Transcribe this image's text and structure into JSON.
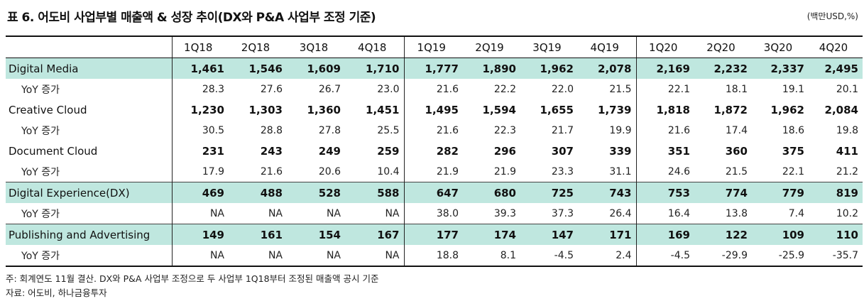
{
  "title": "표 6. 어도비 사업부별 매출액 & 성장 추이(DX와 P&A 사업부 조정 기준)",
  "unit": "(백만USD,%)",
  "columns": [
    "1Q18",
    "2Q18",
    "3Q18",
    "4Q18",
    "1Q19",
    "2Q19",
    "3Q19",
    "4Q19",
    "1Q20",
    "2Q20",
    "3Q20",
    "4Q20"
  ],
  "rows": [
    {
      "label": "Digital Media",
      "values": [
        "1,461",
        "1,546",
        "1,609",
        "1,710",
        "1,777",
        "1,890",
        "1,962",
        "2,078",
        "2,169",
        "2,232",
        "2,337",
        "2,495"
      ]
    },
    {
      "label": "YoY 증가",
      "values": [
        "28.3",
        "27.6",
        "26.7",
        "23.0",
        "21.6",
        "22.2",
        "22.0",
        "21.5",
        "22.1",
        "18.1",
        "19.1",
        "20.1"
      ]
    },
    {
      "label": "Creative Cloud",
      "values": [
        "1,230",
        "1,303",
        "1,360",
        "1,451",
        "1,495",
        "1,594",
        "1,655",
        "1,739",
        "1,818",
        "1,872",
        "1,962",
        "2,084"
      ]
    },
    {
      "label": "YoY 증가",
      "values": [
        "30.5",
        "28.8",
        "27.8",
        "25.5",
        "21.6",
        "22.3",
        "21.7",
        "19.9",
        "21.6",
        "17.4",
        "18.6",
        "19.8"
      ]
    },
    {
      "label": "Document Cloud",
      "values": [
        "231",
        "243",
        "249",
        "259",
        "282",
        "296",
        "307",
        "339",
        "351",
        "360",
        "375",
        "411"
      ]
    },
    {
      "label": "YoY 증가",
      "values": [
        "17.9",
        "21.6",
        "20.6",
        "10.4",
        "21.9",
        "21.9",
        "23.3",
        "31.1",
        "24.6",
        "21.5",
        "22.1",
        "21.2"
      ]
    },
    {
      "label": "Digital Experience(DX)",
      "values": [
        "469",
        "488",
        "528",
        "588",
        "647",
        "680",
        "725",
        "743",
        "753",
        "774",
        "779",
        "819"
      ]
    },
    {
      "label": "YoY 증가",
      "values": [
        "NA",
        "NA",
        "NA",
        "NA",
        "38.0",
        "39.3",
        "37.3",
        "26.4",
        "16.4",
        "13.8",
        "7.4",
        "10.2"
      ]
    },
    {
      "label": "Publishing and Advertising",
      "values": [
        "149",
        "161",
        "154",
        "167",
        "177",
        "174",
        "147",
        "171",
        "169",
        "122",
        "109",
        "110"
      ]
    },
    {
      "label": "YoY 증가",
      "values": [
        "NA",
        "NA",
        "NA",
        "NA",
        "18.8",
        "8.1",
        "-4.5",
        "2.4",
        "-4.5",
        "-29.9",
        "-25.9",
        "-35.7"
      ]
    }
  ],
  "notes": [
    "주: 회계연도 11월 결산. DX와 P&A 사업부 조정으로 두 사업부 1Q18부터 조정된 매출액 공시 기준",
    "자료: 어도비, 하나금융투자"
  ]
}
